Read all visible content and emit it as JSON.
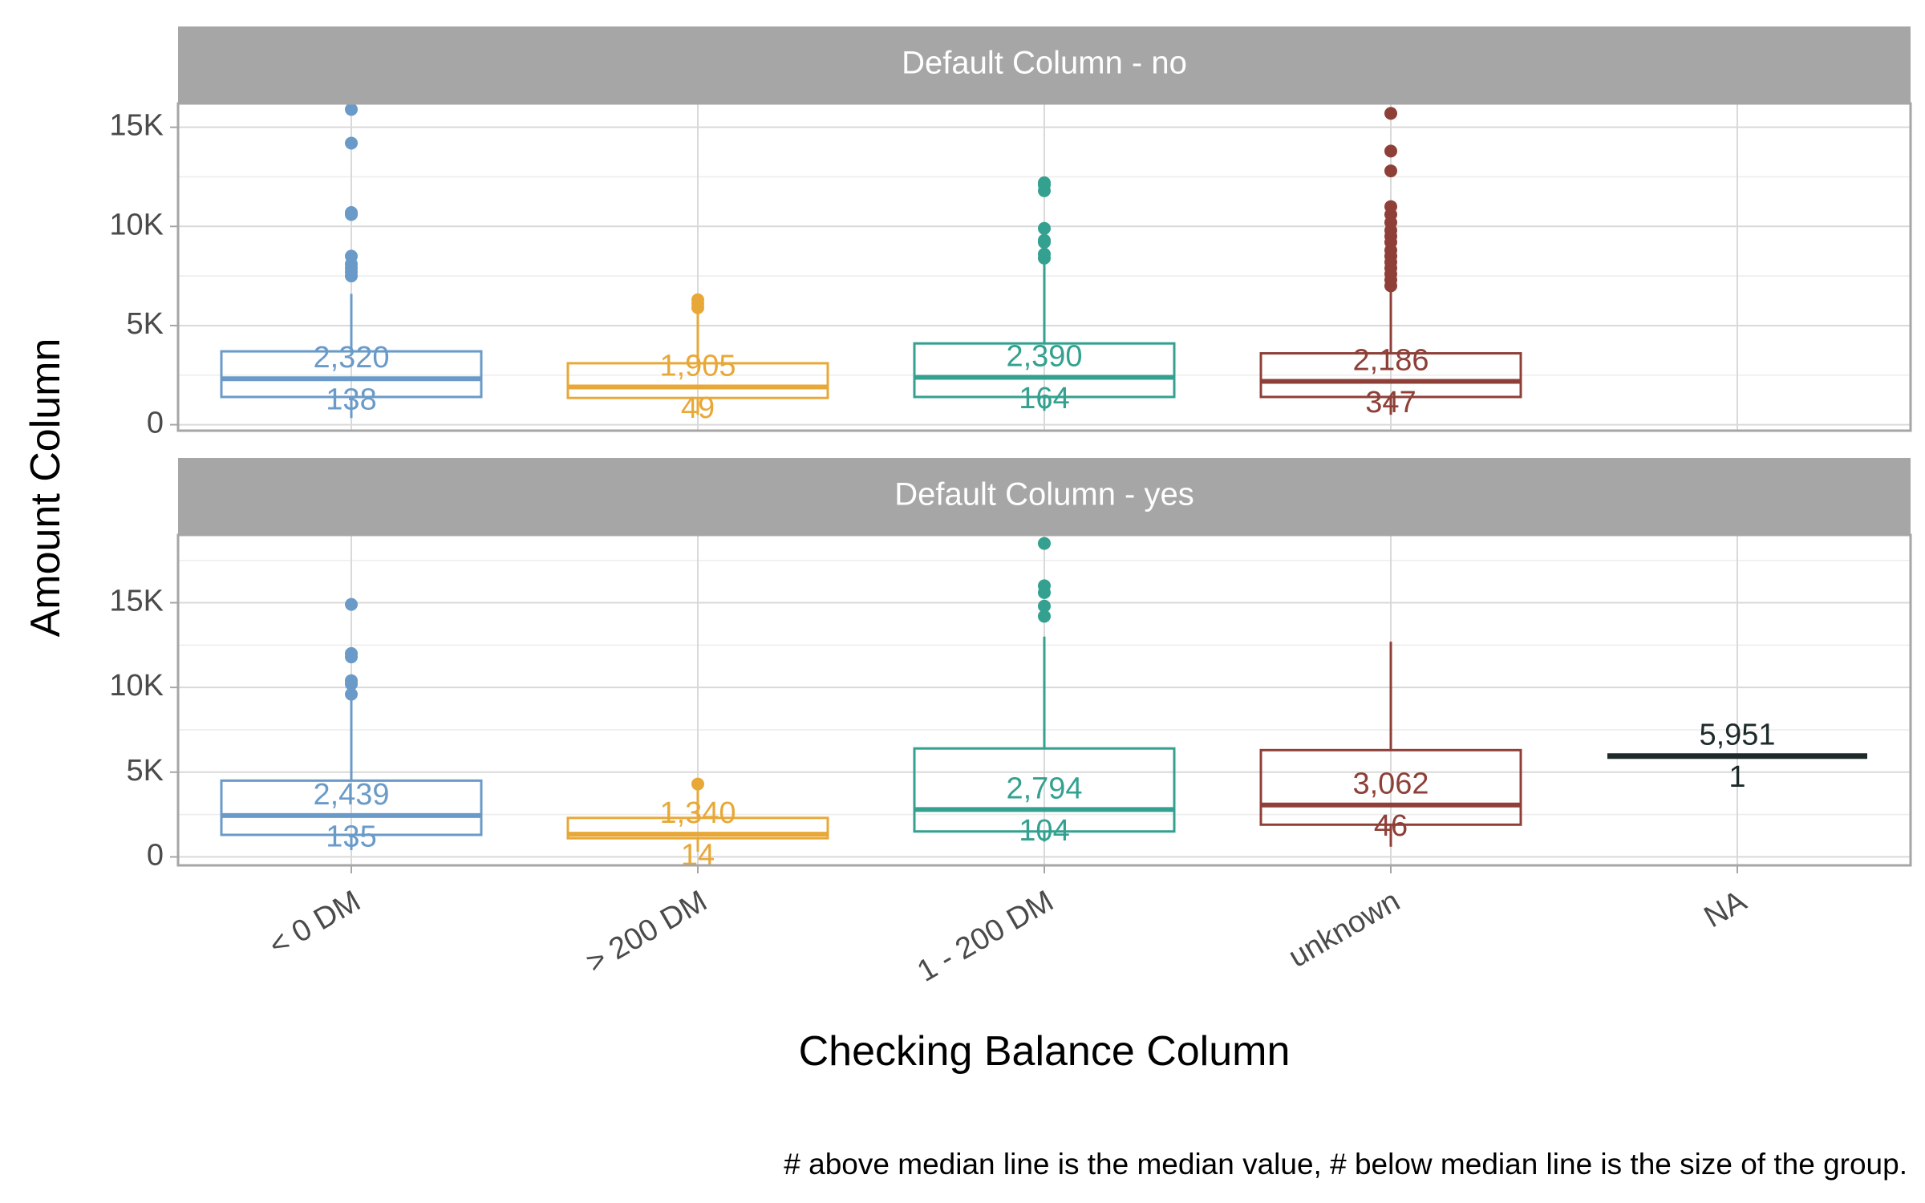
{
  "chart_data": {
    "type": "boxplot",
    "xlabel": "Checking Balance Column",
    "ylabel": "Amount Column",
    "caption": "# above median line is the median value, # below median line is the size of the group.",
    "categories": [
      "< 0 DM",
      "> 200 DM",
      "1 - 200 DM",
      "unknown",
      "NA"
    ],
    "colors": {
      "< 0 DM": "#6a9ac8",
      "> 200 DM": "#e8a838",
      "1 - 200 DM": "#34a190",
      "unknown": "#8e4038",
      "NA": "#1e2a2a"
    },
    "grid": true,
    "panels": [
      {
        "title": "Default Column - no",
        "ylim": [
          -300,
          16200
        ],
        "yticks": [
          0,
          5000,
          10000,
          15000
        ],
        "ytick_labels": [
          "0",
          "5K",
          "10K",
          "15K"
        ],
        "boxes": [
          {
            "category": "< 0 DM",
            "q1": 1400,
            "median": 2320,
            "q3": 3700,
            "whisker_low": 338,
            "whisker_high": 6600,
            "n": 138,
            "median_label": "2,320",
            "n_label": "138",
            "outliers": [
              7500,
              7700,
              7900,
              8100,
              8500,
              10600,
              10700,
              14200,
              15900
            ]
          },
          {
            "category": "> 200 DM",
            "q1": 1350,
            "median": 1905,
            "q3": 3100,
            "whisker_low": 500,
            "whisker_high": 5600,
            "n": 49,
            "median_label": "1,905",
            "n_label": "49",
            "outliers": [
              5900,
              6100,
              6300
            ]
          },
          {
            "category": "1 - 200 DM",
            "q1": 1400,
            "median": 2390,
            "q3": 4100,
            "whisker_low": 700,
            "whisker_high": 8300,
            "n": 164,
            "median_label": "2,390",
            "n_label": "164",
            "outliers": [
              8400,
              8600,
              9200,
              9300,
              9900,
              11800,
              12100,
              12200
            ]
          },
          {
            "category": "unknown",
            "q1": 1400,
            "median": 2186,
            "q3": 3600,
            "whisker_low": 500,
            "whisker_high": 6800,
            "n": 347,
            "median_label": "2,186",
            "n_label": "347",
            "outliers": [
              7000,
              7300,
              7600,
              7900,
              8200,
              8500,
              8800,
              9200,
              9500,
              9800,
              10200,
              10600,
              11000,
              12800,
              13800,
              15700
            ]
          }
        ]
      },
      {
        "title": "Default Column - yes",
        "ylim": [
          -500,
          19000
        ],
        "yticks": [
          0,
          5000,
          10000,
          15000
        ],
        "ytick_labels": [
          "0",
          "5K",
          "10K",
          "15K"
        ],
        "boxes": [
          {
            "category": "< 0 DM",
            "q1": 1300,
            "median": 2439,
            "q3": 4500,
            "whisker_low": 400,
            "whisker_high": 9300,
            "n": 135,
            "median_label": "2,439",
            "n_label": "135",
            "outliers": [
              9600,
              10200,
              10400,
              11800,
              12000,
              14900
            ]
          },
          {
            "category": "> 200 DM",
            "q1": 1100,
            "median": 1340,
            "q3": 2300,
            "whisker_low": 300,
            "whisker_high": 4200,
            "n": 14,
            "median_label": "1,340",
            "n_label": "14",
            "outliers": [
              4300
            ]
          },
          {
            "category": "1 - 200 DM",
            "q1": 1500,
            "median": 2794,
            "q3": 6400,
            "whisker_low": 900,
            "whisker_high": 13000,
            "n": 104,
            "median_label": "2,794",
            "n_label": "104",
            "outliers": [
              14200,
              14800,
              15600,
              16000,
              18500
            ]
          },
          {
            "category": "unknown",
            "q1": 1900,
            "median": 3062,
            "q3": 6300,
            "whisker_low": 600,
            "whisker_high": 12700,
            "n": 46,
            "median_label": "3,062",
            "n_label": "46",
            "outliers": []
          },
          {
            "category": "NA",
            "q1": 5951,
            "median": 5951,
            "q3": 5951,
            "whisker_low": 5951,
            "whisker_high": 5951,
            "n": 1,
            "median_label": "5,951",
            "n_label": "1",
            "outliers": []
          }
        ]
      }
    ]
  }
}
